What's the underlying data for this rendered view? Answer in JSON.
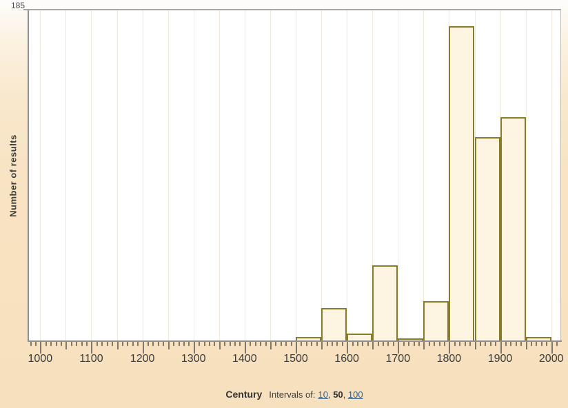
{
  "y_axis": {
    "max_label": "185"
  },
  "footer": {
    "intervals_prefix": "Intervals of:",
    "separator": ", ",
    "options": [
      {
        "label": "10",
        "selected": false
      },
      {
        "label": "50",
        "selected": true
      },
      {
        "label": "100",
        "selected": false
      }
    ]
  },
  "chart_data": {
    "type": "bar",
    "title": "",
    "xlabel": "Century",
    "ylabel": "Number of results",
    "xlim": [
      978,
      2018
    ],
    "ylim": [
      0,
      185
    ],
    "grid": "vertical, every 50 years, faint",
    "legend": "none",
    "interval_years": 50,
    "x_tick_labels": [
      "1000",
      "1100",
      "1200",
      "1300",
      "1400",
      "1500",
      "1600",
      "1700",
      "1800",
      "1900",
      "2000"
    ],
    "tick_steps": {
      "minor": 10,
      "medium": 50,
      "major": 100
    },
    "bins": [
      {
        "start": 1500,
        "end": 1550,
        "count": 2
      },
      {
        "start": 1550,
        "end": 1600,
        "count": 18
      },
      {
        "start": 1600,
        "end": 1650,
        "count": 4
      },
      {
        "start": 1650,
        "end": 1700,
        "count": 42
      },
      {
        "start": 1700,
        "end": 1750,
        "count": 1
      },
      {
        "start": 1750,
        "end": 1800,
        "count": 22
      },
      {
        "start": 1800,
        "end": 1850,
        "count": 176
      },
      {
        "start": 1850,
        "end": 1900,
        "count": 114
      },
      {
        "start": 1900,
        "end": 1950,
        "count": 125
      },
      {
        "start": 1950,
        "end": 2000,
        "count": 2
      }
    ],
    "colors": {
      "bar_fill": "#fdf4e2",
      "bar_border": "#8a7b26",
      "link_blue": "#335d84",
      "background_tan": "#f8e3c2",
      "plot_background": "#ffffff"
    }
  }
}
